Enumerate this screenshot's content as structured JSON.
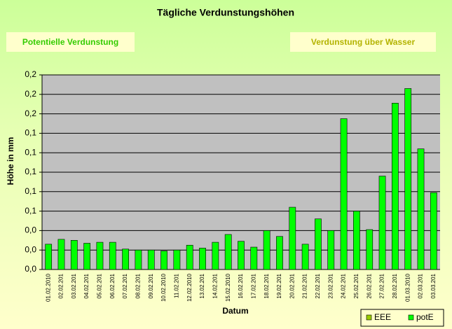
{
  "chart_data": {
    "type": "bar",
    "title": "Tägliche Verdunstungshöhen",
    "buttons": [
      "Potentielle Verdunstung",
      "Verdunstung über Wasser"
    ],
    "ylabel": "Höhe in mm",
    "xlabel": "Datum",
    "categories": [
      "01.02.2010",
      "02.02.201",
      "03.02.201",
      "04.02.201",
      "05.02.201",
      "06.02.201",
      "07.02.201",
      "08.02.201",
      "09.02.201",
      "10.02.2010",
      "11.02.201",
      "12.02.2010",
      "13.02.201",
      "14.02.201",
      "15.02.2010",
      "16.02.201",
      "17.02.201",
      "18.02.201",
      "19.02.201",
      "20.02.201",
      "21.02.201",
      "22.02.201",
      "23.02.201",
      "24.02.201",
      "25.02.201",
      "26.02.201",
      "27.02.201",
      "28.02.201",
      "01.03.2010",
      "02.03.201",
      "03.03.201"
    ],
    "series": [
      {
        "name": "EEE",
        "color": "#99cc00",
        "values": [
          null,
          null,
          null,
          null,
          null,
          null,
          null,
          null,
          null,
          null,
          null,
          null,
          null,
          null,
          null,
          null,
          null,
          null,
          null,
          null,
          null,
          null,
          null,
          null,
          null,
          null,
          null,
          null,
          null,
          null,
          null
        ]
      },
      {
        "name": "potE",
        "color": "#00ff00",
        "values": [
          0.026,
          0.031,
          0.03,
          0.027,
          0.028,
          0.028,
          0.021,
          0.02,
          0.02,
          0.019,
          0.02,
          0.025,
          0.022,
          0.028,
          0.036,
          0.029,
          0.023,
          0.04,
          0.034,
          0.064,
          0.026,
          0.052,
          0.04,
          0.155,
          0.06,
          0.041,
          0.096,
          0.171,
          0.186,
          0.124,
          0.079
        ]
      }
    ],
    "ylim": [
      0,
      0.2
    ],
    "yticks": [
      {
        "value": 0,
        "label": "0,0"
      },
      {
        "value": 0.02,
        "label": "0,0"
      },
      {
        "value": 0.04,
        "label": "0,0"
      },
      {
        "value": 0.06,
        "label": "0,1"
      },
      {
        "value": 0.08,
        "label": "0,1"
      },
      {
        "value": 0.1,
        "label": "0,1"
      },
      {
        "value": 0.12,
        "label": "0,1"
      },
      {
        "value": 0.14,
        "label": "0,1"
      },
      {
        "value": 0.16,
        "label": "0,2"
      },
      {
        "value": 0.18,
        "label": "0,2"
      },
      {
        "value": 0.2,
        "label": "0,2"
      }
    ],
    "grid": true,
    "legend": "bottom-right",
    "plot_background": "#c0c0c0"
  }
}
